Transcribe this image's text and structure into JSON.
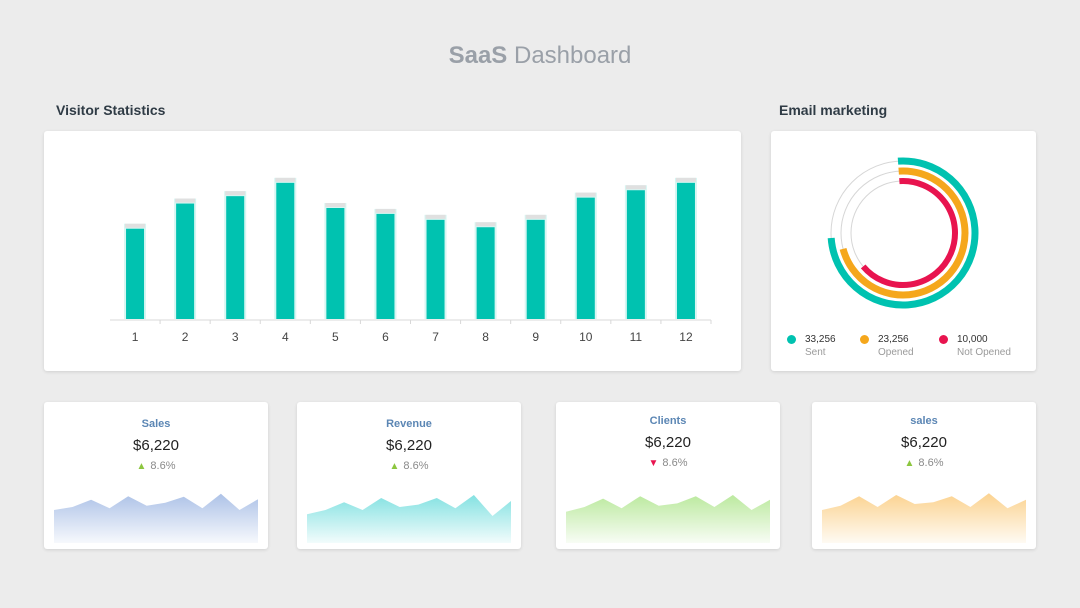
{
  "header": {
    "title_bold": "SaaS",
    "title_rest": " Dashboard"
  },
  "visitor": {
    "label": "Visitor Statistics",
    "chart_data": {
      "type": "bar",
      "categories": [
        "1",
        "2",
        "3",
        "4",
        "5",
        "6",
        "7",
        "8",
        "9",
        "10",
        "11",
        "12"
      ],
      "values": [
        61,
        78,
        83,
        92,
        75,
        71,
        67,
        62,
        67,
        82,
        87,
        92
      ],
      "ylim": [
        0,
        100
      ],
      "colors": {
        "bar": "#00c2b0",
        "track": "#e0e0e0",
        "glow": "#d6f6f2"
      }
    }
  },
  "email": {
    "label": "Email marketing",
    "chart_data": {
      "type": "pie",
      "style": "concentric-rings",
      "series": [
        {
          "value": 33256,
          "label": "Sent",
          "value_text": "33,256",
          "color": "#00c2b0",
          "fraction": 0.75
        },
        {
          "value": 23256,
          "label": "Opened",
          "value_text": "23,256",
          "color": "#f5a71c",
          "fraction": 0.72
        },
        {
          "value": 10000,
          "label": "Not Opened",
          "value_text": "10,000",
          "color": "#e8144f",
          "fraction": 0.65
        }
      ]
    }
  },
  "stats": [
    {
      "title": "Sales",
      "value": "$6,220",
      "change": "8.6%",
      "direction": "up",
      "arrow": "▲",
      "arrow_color": "#8cc63f",
      "color": "#a9bfe6",
      "chart_data": {
        "type": "area",
        "values": [
          55,
          60,
          72,
          58,
          78,
          62,
          67,
          77,
          58,
          82,
          55,
          73
        ]
      }
    },
    {
      "title": "Revenue",
      "value": "$6,220",
      "change": "8.6%",
      "direction": "up",
      "arrow": "▲",
      "arrow_color": "#8cc63f",
      "color": "#7ee0e0",
      "chart_data": {
        "type": "area",
        "values": [
          48,
          55,
          68,
          55,
          75,
          60,
          64,
          75,
          58,
          80,
          45,
          70
        ]
      }
    },
    {
      "title": "Clients",
      "value": "$6,220",
      "change": "8.6%",
      "direction": "down",
      "arrow": "▼",
      "arrow_color": "#e8144f",
      "color": "#b8e89a",
      "chart_data": {
        "type": "area",
        "values": [
          52,
          60,
          74,
          58,
          78,
          62,
          66,
          78,
          60,
          80,
          55,
          72
        ]
      }
    },
    {
      "title": "sales",
      "value": "$6,220",
      "change": "8.6%",
      "direction": "up",
      "arrow": "▲",
      "arrow_color": "#8cc63f",
      "color": "#fbd08a",
      "chart_data": {
        "type": "area",
        "values": [
          55,
          62,
          78,
          60,
          80,
          65,
          68,
          78,
          60,
          83,
          58,
          72
        ]
      }
    }
  ]
}
